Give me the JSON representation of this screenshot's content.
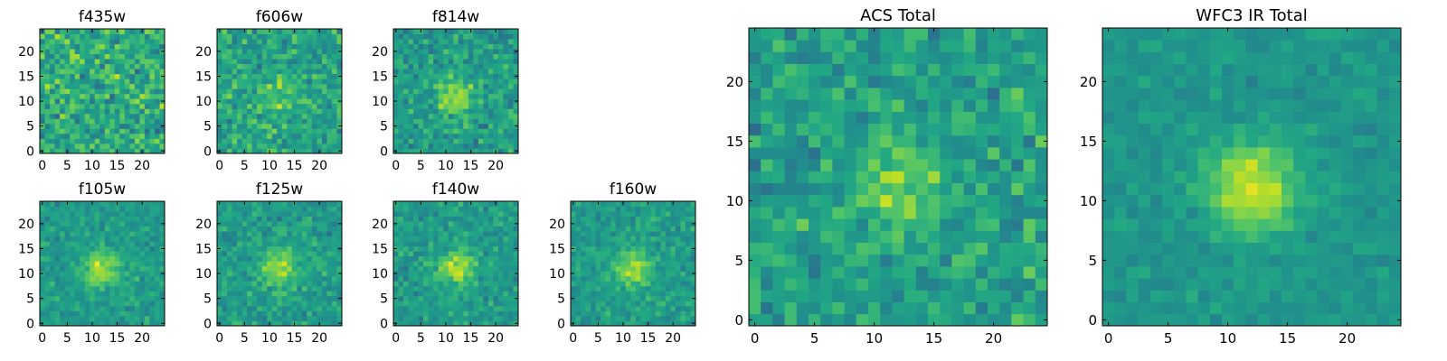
{
  "chart_data": [
    {
      "type": "heatmap",
      "title": "f435w",
      "grid": "25x25",
      "colormap": "viridis",
      "xlim": [
        0,
        24
      ],
      "ylim": [
        0,
        24
      ],
      "xticks": [
        0,
        5,
        10,
        15,
        20
      ],
      "yticks": [
        0,
        5,
        10,
        15,
        20
      ],
      "peak": [
        12,
        11
      ],
      "signal": 0.0,
      "noise": 0.6,
      "seed": 11
    },
    {
      "type": "heatmap",
      "title": "f606w",
      "grid": "25x25",
      "colormap": "viridis",
      "xlim": [
        0,
        24
      ],
      "ylim": [
        0,
        24
      ],
      "xticks": [
        0,
        5,
        10,
        15,
        20
      ],
      "yticks": [
        0,
        5,
        10,
        15,
        20
      ],
      "peak": [
        12,
        11
      ],
      "signal": 0.25,
      "noise": 0.5,
      "seed": 23
    },
    {
      "type": "heatmap",
      "title": "f814w",
      "grid": "25x25",
      "colormap": "viridis",
      "xlim": [
        0,
        24
      ],
      "ylim": [
        0,
        24
      ],
      "xticks": [
        0,
        5,
        10,
        15,
        20
      ],
      "yticks": [
        0,
        5,
        10,
        15,
        20
      ],
      "peak": [
        12,
        11
      ],
      "signal": 0.55,
      "noise": 0.45,
      "seed": 37
    },
    {
      "type": "heatmap",
      "title": "f105w",
      "grid": "25x25",
      "colormap": "viridis",
      "xlim": [
        0,
        24
      ],
      "ylim": [
        0,
        24
      ],
      "xticks": [
        0,
        5,
        10,
        15,
        20
      ],
      "yticks": [
        0,
        5,
        10,
        15,
        20
      ],
      "peak": [
        12,
        11
      ],
      "signal": 0.6,
      "noise": 0.32,
      "seed": 41
    },
    {
      "type": "heatmap",
      "title": "f125w",
      "grid": "25x25",
      "colormap": "viridis",
      "xlim": [
        0,
        24
      ],
      "ylim": [
        0,
        24
      ],
      "xticks": [
        0,
        5,
        10,
        15,
        20
      ],
      "yticks": [
        0,
        5,
        10,
        15,
        20
      ],
      "peak": [
        12,
        11
      ],
      "signal": 0.55,
      "noise": 0.35,
      "seed": 53
    },
    {
      "type": "heatmap",
      "title": "f140w",
      "grid": "25x25",
      "colormap": "viridis",
      "xlim": [
        0,
        24
      ],
      "ylim": [
        0,
        24
      ],
      "xticks": [
        0,
        5,
        10,
        15,
        20
      ],
      "yticks": [
        0,
        5,
        10,
        15,
        20
      ],
      "peak": [
        12,
        11
      ],
      "signal": 0.6,
      "noise": 0.35,
      "seed": 67
    },
    {
      "type": "heatmap",
      "title": "f160w",
      "grid": "25x25",
      "colormap": "viridis",
      "xlim": [
        0,
        24
      ],
      "ylim": [
        0,
        24
      ],
      "xticks": [
        0,
        5,
        10,
        15,
        20
      ],
      "yticks": [
        0,
        5,
        10,
        15,
        20
      ],
      "peak": [
        12,
        11
      ],
      "signal": 0.55,
      "noise": 0.32,
      "seed": 79
    },
    {
      "type": "heatmap",
      "title": "ACS Total",
      "grid": "25x25",
      "colormap": "viridis",
      "xlim": [
        0,
        24
      ],
      "ylim": [
        0,
        24
      ],
      "xticks": [
        0,
        5,
        10,
        15,
        20
      ],
      "yticks": [
        0,
        5,
        10,
        15,
        20
      ],
      "peak": [
        12,
        11
      ],
      "signal": 0.5,
      "noise": 0.45,
      "seed": 83
    },
    {
      "type": "heatmap",
      "title": "WFC3 IR Total",
      "grid": "25x25",
      "colormap": "viridis",
      "xlim": [
        0,
        24
      ],
      "ylim": [
        0,
        24
      ],
      "xticks": [
        0,
        5,
        10,
        15,
        20
      ],
      "yticks": [
        0,
        5,
        10,
        15,
        20
      ],
      "peak": [
        12,
        11
      ],
      "signal": 0.75,
      "noise": 0.2,
      "seed": 97
    }
  ]
}
